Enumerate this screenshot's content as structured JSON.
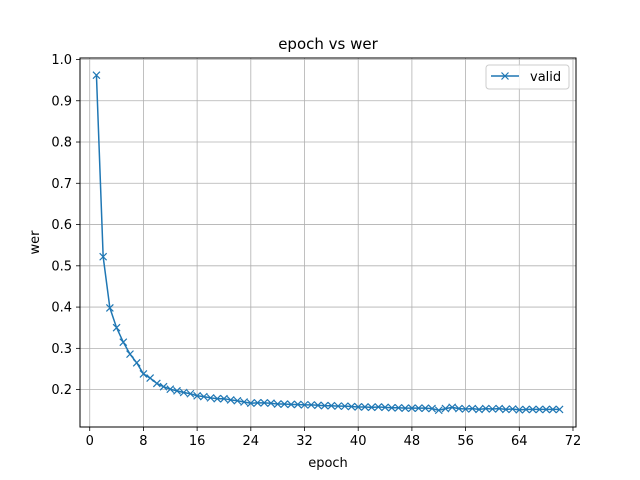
{
  "chart_data": {
    "type": "line",
    "title": "epoch vs wer",
    "xlabel": "epoch",
    "ylabel": "wer",
    "xlim": [
      -1.45,
      72.45
    ],
    "ylim": [
      0.1094,
      1.0036
    ],
    "xticks": [
      0,
      8,
      16,
      24,
      32,
      40,
      48,
      56,
      64,
      72
    ],
    "yticks": [
      0.2,
      0.3,
      0.4,
      0.5,
      0.6,
      0.7,
      0.8,
      0.9,
      1.0
    ],
    "ytick_labels": [
      "0.2",
      "0.3",
      "0.4",
      "0.5",
      "0.6",
      "0.7",
      "0.8",
      "0.9",
      "1.0"
    ],
    "grid": true,
    "legend_position": "top-right",
    "marker": "x",
    "color": "#1f77b4",
    "series": [
      {
        "name": "valid",
        "x": [
          1,
          2,
          3,
          4,
          5,
          6,
          7,
          8,
          9,
          10,
          11,
          12,
          13,
          14,
          15,
          16,
          17,
          18,
          19,
          20,
          21,
          22,
          23,
          24,
          25,
          26,
          27,
          28,
          29,
          30,
          31,
          32,
          33,
          34,
          35,
          36,
          37,
          38,
          39,
          40,
          41,
          42,
          43,
          44,
          45,
          46,
          47,
          48,
          49,
          50,
          51,
          52,
          53,
          54,
          55,
          56,
          57,
          58,
          59,
          60,
          61,
          62,
          63,
          64,
          65,
          66,
          67,
          68,
          69,
          70
        ],
        "values": [
          0.962,
          0.522,
          0.398,
          0.35,
          0.315,
          0.286,
          0.265,
          0.238,
          0.228,
          0.215,
          0.207,
          0.201,
          0.197,
          0.193,
          0.19,
          0.185,
          0.183,
          0.18,
          0.178,
          0.178,
          0.175,
          0.173,
          0.17,
          0.167,
          0.168,
          0.168,
          0.167,
          0.165,
          0.165,
          0.164,
          0.164,
          0.163,
          0.163,
          0.162,
          0.161,
          0.161,
          0.16,
          0.16,
          0.159,
          0.158,
          0.158,
          0.157,
          0.158,
          0.157,
          0.156,
          0.156,
          0.155,
          0.155,
          0.155,
          0.155,
          0.154,
          0.15,
          0.154,
          0.157,
          0.154,
          0.153,
          0.154,
          0.152,
          0.154,
          0.153,
          0.154,
          0.152,
          0.153,
          0.151,
          0.152,
          0.152,
          0.152,
          0.152,
          0.152,
          0.152
        ]
      }
    ]
  }
}
